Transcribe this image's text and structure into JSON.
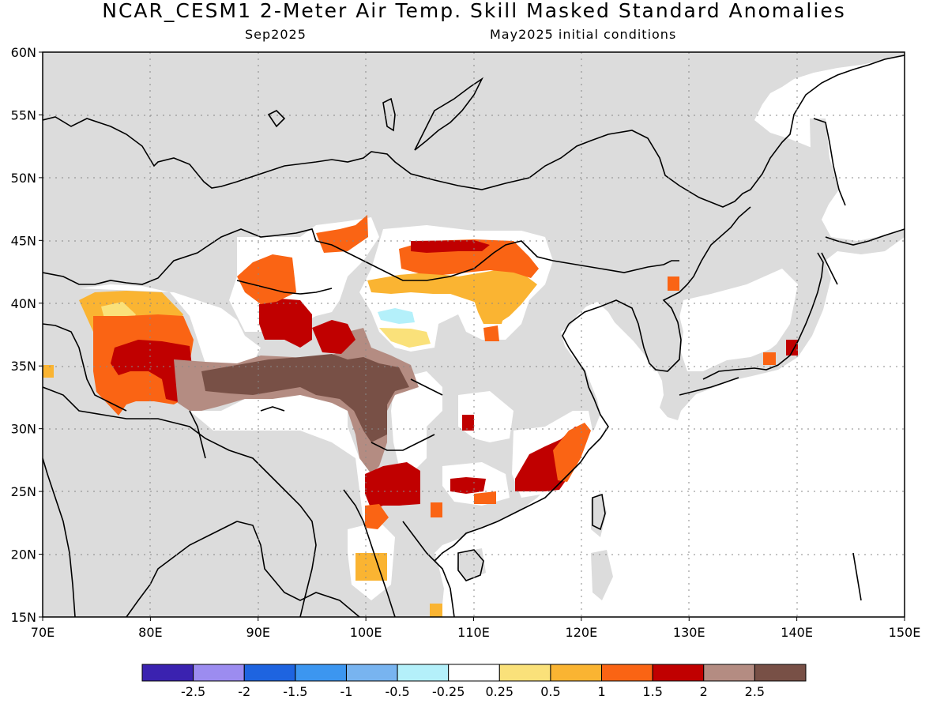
{
  "header": {
    "title": "NCAR_CESM1 2-Meter Air Temp. Skill Masked Standard Anomalies",
    "valid_month": "Sep2025",
    "initial_conditions": "May2025 initial conditions"
  },
  "axes": {
    "lat_labels": [
      "60N",
      "55N",
      "50N",
      "45N",
      "40N",
      "35N",
      "30N",
      "25N",
      "20N",
      "15N"
    ],
    "lon_labels": [
      "70E",
      "80E",
      "90E",
      "100E",
      "110E",
      "120E",
      "130E",
      "140E",
      "150E"
    ],
    "lat_range": [
      15,
      60
    ],
    "lon_range": [
      70,
      150
    ],
    "grid": "dotted"
  },
  "colorbar": {
    "labels": [
      "-2.5",
      "-2",
      "-1.5",
      "-1",
      "-0.5",
      "-0.25",
      "0.25",
      "0.5",
      "1",
      "1.5",
      "2",
      "2.5"
    ],
    "colors": [
      "#3a22b0",
      "#9c8cf0",
      "#1e64e0",
      "#3c96f0",
      "#78b4f0",
      "#b4f0fa",
      "#ffffff",
      "#fae17a",
      "#fab432",
      "#fa6414",
      "#c00000",
      "#b48c82",
      "#785046"
    ]
  },
  "colors": {
    "no_skill_land": "#dcdcdc",
    "coastline": "#000000"
  }
}
